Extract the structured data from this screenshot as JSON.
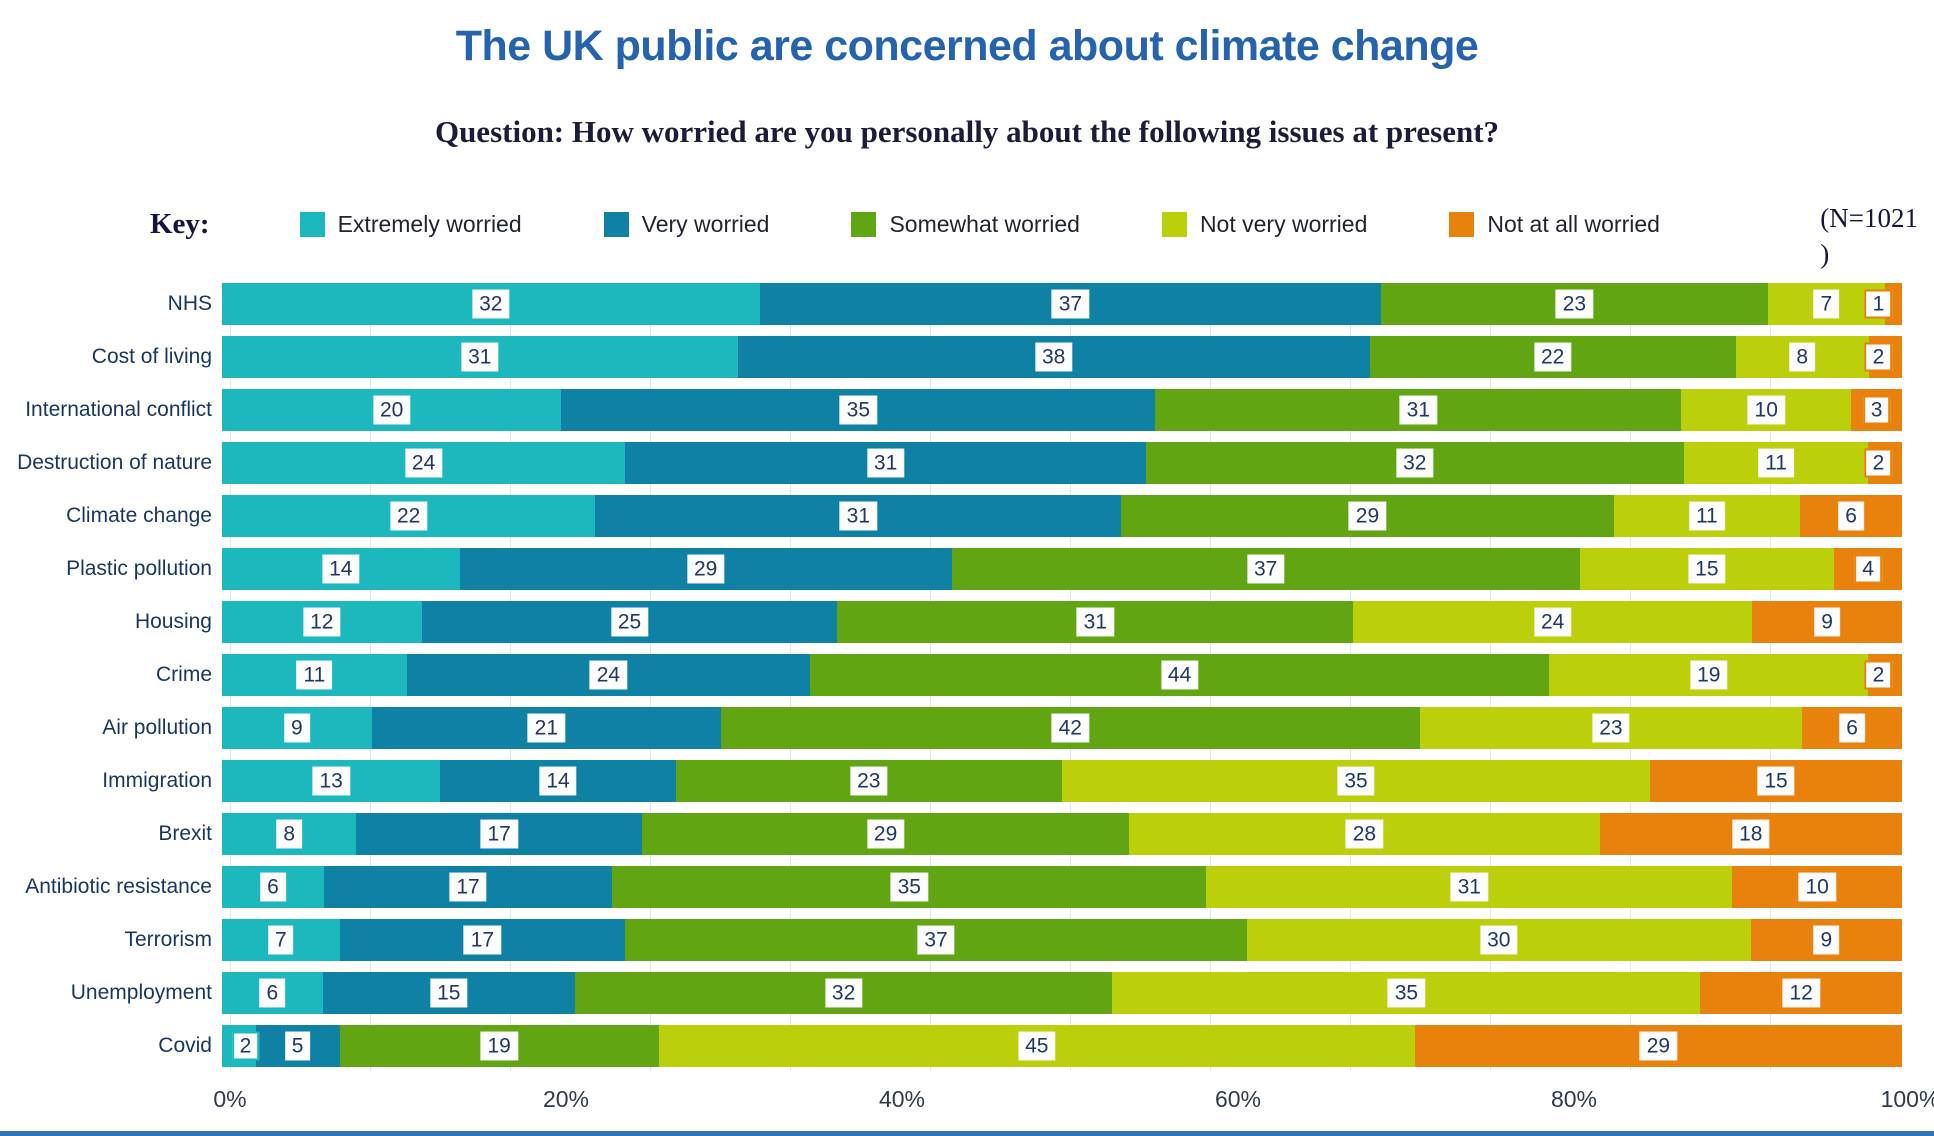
{
  "page": {
    "title": "The UK public are concerned about climate change",
    "subtitle": "Question: How worried are you personally about the following issues at present?"
  },
  "legend": {
    "key_label": "Key:",
    "sample_note_line1": "(N=1021",
    "sample_note_line2": ")"
  },
  "colors": {
    "title_blue": "#2563ae",
    "text_navy": "#17375e",
    "chip_background": "#fdfdfd",
    "gridline": "#d9e6f3",
    "bottom_strip": "#2e75b6"
  },
  "chart_data": {
    "type": "bar",
    "stacked": true,
    "orientation": "horizontal",
    "unit": "percent",
    "title": "The UK public are concerned about climate change",
    "question": "How worried are you personally about the following issues at present?",
    "sample_size": 1021,
    "legend_position": "top",
    "categories": [
      "NHS",
      "Cost of living",
      "International conflict",
      "Destruction of nature",
      "Climate change",
      "Plastic pollution",
      "Housing",
      "Crime",
      "Air pollution",
      "Immigration",
      "Brexit",
      "Antibiotic resistance",
      "Terrorism",
      "Unemployment",
      "Covid"
    ],
    "series": [
      {
        "name": "Extremely worried",
        "color": "#1cb8be",
        "values": [
          32,
          31,
          20,
          24,
          22,
          14,
          12,
          11,
          9,
          13,
          8,
          6,
          7,
          6,
          2
        ]
      },
      {
        "name": "Very worried",
        "color": "#0f81a4",
        "values": [
          37,
          38,
          35,
          31,
          31,
          29,
          25,
          24,
          21,
          14,
          17,
          17,
          17,
          15,
          5
        ]
      },
      {
        "name": "Somewhat worried",
        "color": "#62a513",
        "values": [
          23,
          22,
          31,
          32,
          29,
          37,
          31,
          44,
          42,
          23,
          29,
          35,
          37,
          32,
          19
        ]
      },
      {
        "name": "Not very worried",
        "color": "#bccf0b",
        "values": [
          7,
          8,
          10,
          11,
          11,
          15,
          24,
          19,
          23,
          35,
          28,
          31,
          30,
          35,
          45
        ]
      },
      {
        "name": "Not at all worried",
        "color": "#e8820d",
        "values": [
          1,
          2,
          3,
          2,
          6,
          4,
          9,
          2,
          6,
          15,
          18,
          10,
          9,
          12,
          29
        ]
      }
    ],
    "x_axis": {
      "ticks": [
        "0%",
        "20%",
        "40%",
        "60%",
        "80%",
        "100%"
      ],
      "range": [
        0,
        100
      ],
      "gridlines": "faint-vertical"
    }
  }
}
